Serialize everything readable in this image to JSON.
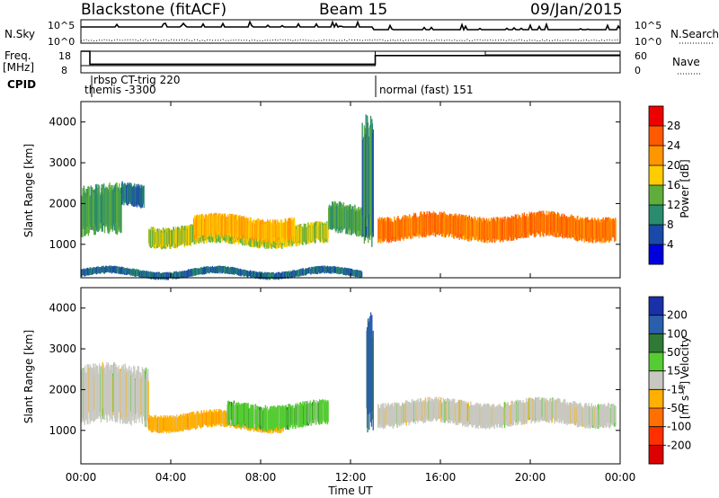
{
  "header": {
    "station": "Blackstone (fitACF)",
    "beam": "Beam 15",
    "date": "09/Jan/2015"
  },
  "top_panel_labels": {
    "nsky": "N.Sky",
    "nsky_ticks": [
      "10^5",
      "10^0"
    ],
    "nsearch": "N.Search",
    "nsearch_ticks": [
      "10^5",
      "10^0"
    ],
    "freq": "Freq.",
    "freq_unit": "[MHz]",
    "freq_ticks": [
      "18",
      "8"
    ],
    "nave": "Nave",
    "nave_ticks": [
      "60",
      "0"
    ],
    "cpid": "CPID"
  },
  "cpid_entries": [
    {
      "text": "rbsp CT-trig 220"
    },
    {
      "text": "themis -3300"
    },
    {
      "text": "normal (fast) 151"
    }
  ],
  "axes": {
    "ylabel": "Slant Range [km]",
    "y_ticks": [
      "1000",
      "2000",
      "3000",
      "4000"
    ],
    "xlabel": "Time UT",
    "x_ticks": [
      "00:00",
      "04:00",
      "08:00",
      "12:00",
      "16:00",
      "20:00",
      "00:00"
    ]
  },
  "colorbars": {
    "power": {
      "label": "Power [dB]",
      "ticks": [
        "28",
        "24",
        "20",
        "16",
        "12",
        "8",
        "4"
      ],
      "colors": [
        "#ee0000",
        "#ff5a00",
        "#ff9600",
        "#ffcc00",
        "#5fae3c",
        "#2a8b6e",
        "#1a4aa8",
        "#0000dd"
      ]
    },
    "velocity": {
      "label_main": "Velocity",
      "label_unit": "[m s⁻¹]",
      "ticks": [
        "200",
        "100",
        "50",
        "15",
        "-15",
        "-50",
        "-100",
        "-200"
      ],
      "colors": [
        "#1a30a8",
        "#2a5fae",
        "#2f7a36",
        "#55cc33",
        "#c8c8c0",
        "#ffb000",
        "#ff7000",
        "#ff3000",
        "#dd0000"
      ]
    }
  },
  "chart_data": {
    "type": "heatmap",
    "x_range_hours": [
      0,
      24
    ],
    "y_range_km": [
      180,
      4500
    ],
    "frequency_mhz": [
      {
        "start": 0,
        "end": 0.4,
        "value": 18
      },
      {
        "start": 0.4,
        "end": 13.1,
        "value": 12
      },
      {
        "start": 13.1,
        "end": 24,
        "value": 16
      }
    ],
    "nave": [
      {
        "start": 0,
        "end": 13.1,
        "value": 20
      },
      {
        "start": 13.1,
        "end": 18.0,
        "value": 60
      },
      {
        "start": 18.0,
        "end": 24,
        "value": 50
      }
    ],
    "power_features": [
      {
        "t0": 0.0,
        "t1": 1.8,
        "r0": 1150,
        "r1": 2450,
        "level": 10
      },
      {
        "t0": 1.8,
        "t1": 2.8,
        "r0": 1900,
        "r1": 2500,
        "level": 6
      },
      {
        "t0": 3.0,
        "t1": 11.0,
        "r0": 950,
        "r1": 1500,
        "level": 14
      },
      {
        "t0": 5.0,
        "t1": 9.5,
        "r0": 1100,
        "r1": 1700,
        "level": 18
      },
      {
        "t0": 11.0,
        "t1": 13.0,
        "r0": 1200,
        "r1": 2000,
        "level": 10
      },
      {
        "t0": 12.5,
        "t1": 13.0,
        "r0": 1000,
        "r1": 4300,
        "level": 8
      },
      {
        "t0": 13.2,
        "t1": 23.8,
        "r0": 1100,
        "r1": 1750,
        "level": 22
      },
      {
        "t0": 0.0,
        "t1": 12.5,
        "r0": 200,
        "r1": 400,
        "level": 6
      }
    ],
    "velocity_features": [
      {
        "t0": 0.0,
        "t1": 3.0,
        "r0": 1100,
        "r1": 2600,
        "class": "-15..15"
      },
      {
        "t0": 3.0,
        "t1": 9.0,
        "r0": 1000,
        "r1": 1450,
        "class": "-50..-15"
      },
      {
        "t0": 6.5,
        "t1": 11.0,
        "r0": 1050,
        "r1": 1700,
        "class": "15..50"
      },
      {
        "t0": 13.2,
        "t1": 23.8,
        "r0": 1100,
        "r1": 1750,
        "class": "-15..15"
      },
      {
        "t0": 12.7,
        "t1": 13.0,
        "r0": 1000,
        "r1": 4000,
        "class": "100..200"
      }
    ]
  }
}
